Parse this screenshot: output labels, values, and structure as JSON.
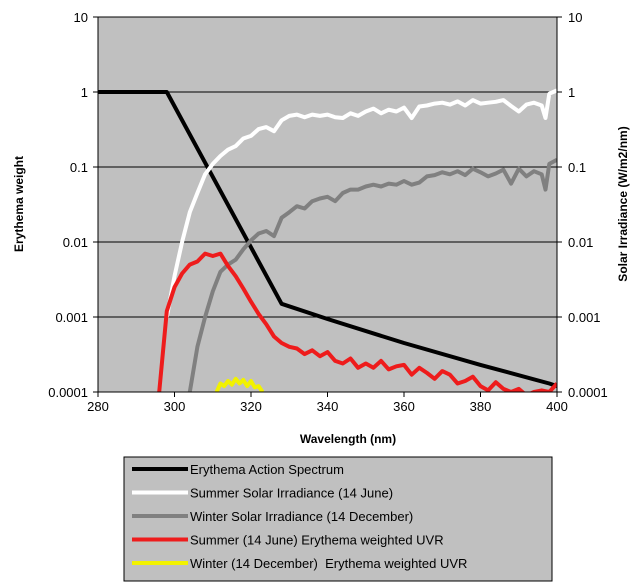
{
  "chart_data": {
    "type": "line",
    "title": "",
    "xlabel": "Wavelength (nm)",
    "ylabel_left": "Erythema weight",
    "ylabel_right": "Solar Irradiance (W/m2/nm)",
    "x_ticks": [
      "280",
      "300",
      "320",
      "340",
      "360",
      "380",
      "400"
    ],
    "y_ticks_left": [
      "0.0001",
      "0.001",
      "0.01",
      "0.1",
      "1",
      "10"
    ],
    "y_ticks_right": [
      "0.0001",
      "0.001",
      "0.01",
      "0.1",
      "1",
      "10"
    ],
    "xlim": [
      280,
      400
    ],
    "ylim": [
      0.0001,
      10
    ],
    "y_scale": "log",
    "grid": "horizontal",
    "legend_position": "below",
    "plot_background": "#c0c0c0",
    "series": [
      {
        "name": "Erythema Action Spectrum",
        "color": "#000000",
        "axis": "left",
        "x": [
          280,
          298,
          328,
          340,
          360,
          380,
          398,
          400
        ],
        "y": [
          1,
          1,
          0.0015,
          0.00094,
          0.00045,
          0.00023,
          0.00013,
          0.00012
        ]
      },
      {
        "name": "Summer Solar Irradiance (14 June)",
        "color": "#ffffff",
        "axis": "right",
        "x": [
          298,
          300,
          302,
          304,
          306,
          308,
          310,
          312,
          314,
          316,
          318,
          320,
          322,
          324,
          326,
          328,
          330,
          332,
          334,
          336,
          338,
          340,
          342,
          344,
          346,
          348,
          350,
          352,
          354,
          356,
          358,
          360,
          362,
          364,
          366,
          368,
          370,
          372,
          374,
          376,
          378,
          380,
          382,
          384,
          386,
          388,
          390,
          392,
          394,
          396,
          397,
          398,
          400
        ],
        "y": [
          0.001,
          0.0035,
          0.01,
          0.025,
          0.045,
          0.08,
          0.11,
          0.14,
          0.17,
          0.19,
          0.24,
          0.26,
          0.32,
          0.34,
          0.3,
          0.42,
          0.48,
          0.5,
          0.46,
          0.5,
          0.48,
          0.5,
          0.46,
          0.45,
          0.52,
          0.48,
          0.55,
          0.6,
          0.52,
          0.58,
          0.55,
          0.62,
          0.45,
          0.64,
          0.66,
          0.7,
          0.72,
          0.68,
          0.75,
          0.66,
          0.78,
          0.7,
          0.72,
          0.74,
          0.78,
          0.65,
          0.55,
          0.68,
          0.72,
          0.66,
          0.45,
          0.95,
          1.05
        ]
      },
      {
        "name": "Winter Solar Irradiance (14 December)",
        "color": "#808080",
        "axis": "right",
        "x": [
          304,
          306,
          308,
          310,
          312,
          314,
          316,
          318,
          320,
          322,
          324,
          326,
          328,
          330,
          332,
          334,
          336,
          338,
          340,
          342,
          344,
          346,
          348,
          350,
          352,
          354,
          356,
          358,
          360,
          362,
          364,
          366,
          368,
          370,
          372,
          374,
          376,
          378,
          380,
          382,
          384,
          386,
          388,
          390,
          392,
          394,
          396,
          397,
          398,
          400
        ],
        "y": [
          0.0001,
          0.0004,
          0.001,
          0.0022,
          0.004,
          0.005,
          0.0058,
          0.008,
          0.0105,
          0.013,
          0.014,
          0.012,
          0.021,
          0.025,
          0.03,
          0.028,
          0.035,
          0.038,
          0.04,
          0.035,
          0.045,
          0.05,
          0.05,
          0.055,
          0.058,
          0.055,
          0.06,
          0.058,
          0.065,
          0.058,
          0.062,
          0.075,
          0.078,
          0.085,
          0.08,
          0.088,
          0.078,
          0.095,
          0.085,
          0.075,
          0.082,
          0.092,
          0.06,
          0.095,
          0.075,
          0.088,
          0.08,
          0.05,
          0.11,
          0.125
        ]
      },
      {
        "name": "Summer (14 June) Erythema weighted UVR",
        "color": "#ee1c1c",
        "axis": "left",
        "x": [
          296,
          298,
          300,
          302,
          304,
          306,
          308,
          310,
          312,
          314,
          316,
          318,
          320,
          322,
          324,
          326,
          328,
          330,
          332,
          334,
          336,
          338,
          340,
          342,
          344,
          346,
          348,
          350,
          352,
          354,
          356,
          358,
          360,
          362,
          364,
          366,
          368,
          370,
          372,
          374,
          376,
          378,
          380,
          382,
          384,
          386,
          388,
          390,
          392,
          394,
          396,
          398,
          400
        ],
        "y": [
          0.0001,
          0.0012,
          0.0025,
          0.0038,
          0.005,
          0.0055,
          0.007,
          0.0065,
          0.007,
          0.0048,
          0.0035,
          0.0024,
          0.0016,
          0.0011,
          0.0008,
          0.00055,
          0.00045,
          0.0004,
          0.00038,
          0.00032,
          0.00036,
          0.0003,
          0.00034,
          0.00026,
          0.00024,
          0.00028,
          0.00021,
          0.00024,
          0.00021,
          0.00026,
          0.0002,
          0.00022,
          0.00023,
          0.00017,
          0.00021,
          0.00018,
          0.00015,
          0.00019,
          0.00017,
          0.00013,
          0.00014,
          0.00016,
          0.00012,
          0.000105,
          0.000135,
          0.00011,
          0.0001,
          0.00011,
          9e-05,
          0.0001,
          0.000105,
          0.0001,
          0.00013
        ]
      },
      {
        "name": "Winter (14 December)  Erythema weighted UVR",
        "color": "#f2f200",
        "axis": "left",
        "x": [
          311,
          312,
          313,
          314,
          315,
          316,
          317,
          318,
          319,
          320,
          321,
          322,
          323
        ],
        "y": [
          0.0001,
          0.00013,
          0.00012,
          0.00014,
          0.000125,
          0.00015,
          0.00013,
          0.000145,
          0.00012,
          0.00014,
          0.000115,
          0.00012,
          0.0001
        ]
      }
    ]
  }
}
